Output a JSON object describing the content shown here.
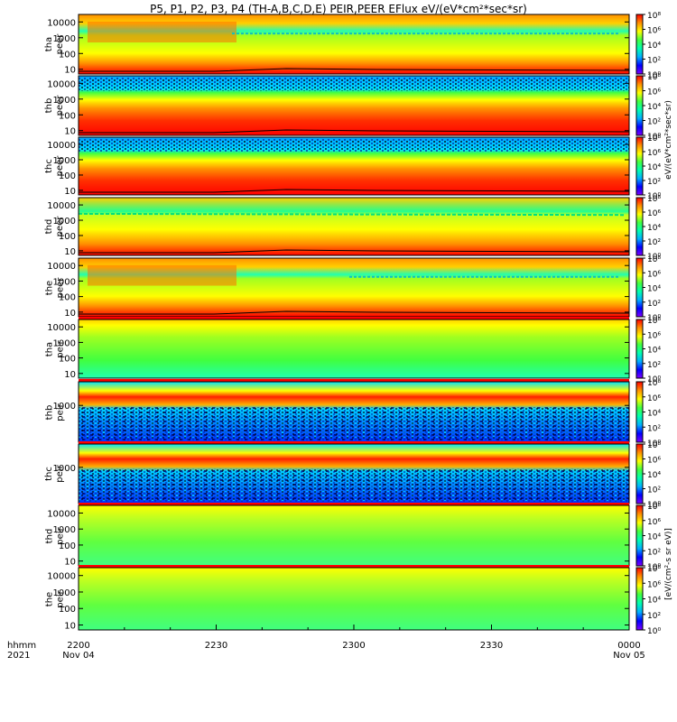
{
  "title": "P5, P1, P2, P3, P4 (TH-A,B,C,D,E) PEIR,PEER EFlux eV/(eV*cm²*sec*sr)",
  "colorbar_label_left": "[eV/(cm²-s sr eV)]",
  "colorbar_label_right": "eV/(eV*cm²*sec*sr)",
  "time_axis": {
    "left_labels": [
      "hhmm",
      "2021"
    ],
    "ticks": [
      {
        "hhmm": "2200",
        "date": "Nov 04"
      },
      {
        "hhmm": "2230",
        "date": ""
      },
      {
        "hhmm": "2300",
        "date": ""
      },
      {
        "hhmm": "2330",
        "date": ""
      },
      {
        "hhmm": "0000",
        "date": "Nov 05"
      }
    ]
  },
  "colors": {
    "colormap": [
      "#7f00ff",
      "#0000ff",
      "#00b0ff",
      "#00ffb0",
      "#40ff40",
      "#ffff00",
      "#ff9000",
      "#ff0000"
    ],
    "line": "#000000"
  },
  "chart_data": {
    "type": "heatmap",
    "title": "P5, P1, P2, P3, P4 (TH-A,B,C,D,E) PEIR,PEER EFlux eV/(eV*cm²*sec*sr)",
    "x": [
      "2200",
      "2230",
      "2300",
      "2330",
      "0000"
    ],
    "x_range": [
      "2021-11-04 22:00",
      "2021-11-05 00:00"
    ],
    "y_scale": "log",
    "z_scale": "log",
    "panels": [
      {
        "name": "tha peer",
        "ylabel": "tha\npeer",
        "yticks": [
          "10",
          "100",
          "1000",
          "10000"
        ],
        "ylim": [
          5,
          30000
        ],
        "zlim": [
          1,
          100000000
        ],
        "cbar_ticks": [
          "10⁰",
          "10²",
          "10⁴",
          "10⁶",
          "10⁸"
        ]
      },
      {
        "name": "thb peer",
        "ylabel": "thb\npeer",
        "yticks": [
          "10",
          "100",
          "1000",
          "10000"
        ],
        "ylim": [
          5,
          30000
        ],
        "zlim": [
          1,
          100000000
        ],
        "cbar_ticks": [
          "10⁰",
          "10²",
          "10⁴",
          "10⁶",
          "10⁸"
        ]
      },
      {
        "name": "thc peer",
        "ylabel": "thc\npeer",
        "yticks": [
          "10",
          "100",
          "1000",
          "10000"
        ],
        "ylim": [
          5,
          30000
        ],
        "zlim": [
          1,
          100000000
        ],
        "cbar_ticks": [
          "10⁰",
          "10²",
          "10⁴",
          "10⁶",
          "10⁸"
        ]
      },
      {
        "name": "thd peer",
        "ylabel": "thd\npeer",
        "yticks": [
          "10",
          "100",
          "1000",
          "10000"
        ],
        "ylim": [
          5,
          30000
        ],
        "zlim": [
          1,
          100000000
        ],
        "cbar_ticks": [
          "10⁰",
          "10²",
          "10⁴",
          "10⁶",
          "10⁸"
        ]
      },
      {
        "name": "the peer",
        "ylabel": "the\npeer",
        "yticks": [
          "10",
          "100",
          "1000",
          "10000"
        ],
        "ylim": [
          5,
          30000
        ],
        "zlim": [
          1,
          100000000
        ],
        "cbar_ticks": [
          "10⁰",
          "10²",
          "10⁴",
          "10⁶",
          "10⁸"
        ]
      },
      {
        "name": "tha peir",
        "ylabel": "tha\npeir",
        "yticks": [
          "10",
          "100",
          "1000",
          "10000"
        ],
        "ylim": [
          5,
          30000
        ],
        "zlim": [
          1,
          100000000
        ],
        "cbar_ticks": [
          "10⁰",
          "10²",
          "10⁴",
          "10⁶",
          "10⁸"
        ]
      },
      {
        "name": "thb peir",
        "ylabel": "thb\npeir",
        "yticks": [
          "1000"
        ],
        "ylim": [
          5,
          30000
        ],
        "zlim": [
          1,
          100000000
        ],
        "cbar_ticks": [
          "10⁰",
          "10²",
          "10⁴",
          "10⁶",
          "10⁸"
        ]
      },
      {
        "name": "thc peir",
        "ylabel": "thc\npeir",
        "yticks": [
          "1000"
        ],
        "ylim": [
          5,
          30000
        ],
        "zlim": [
          1,
          100000000
        ],
        "cbar_ticks": [
          "10⁰",
          "10²",
          "10⁴",
          "10⁶",
          "10⁸"
        ]
      },
      {
        "name": "thd peir",
        "ylabel": "thd\npeir",
        "yticks": [
          "10",
          "100",
          "1000",
          "10000"
        ],
        "ylim": [
          5,
          30000
        ],
        "zlim": [
          1,
          100000000
        ],
        "cbar_ticks": [
          "10⁰",
          "10²",
          "10⁴",
          "10⁶",
          "10⁸"
        ]
      },
      {
        "name": "the peir",
        "ylabel": "the\npeir",
        "yticks": [
          "10",
          "100",
          "1000",
          "10000"
        ],
        "ylim": [
          5,
          30000
        ],
        "zlim": [
          1,
          100000000
        ],
        "cbar_ticks": [
          "10⁰",
          "10²",
          "10⁴",
          "10⁶",
          "10⁸"
        ]
      }
    ]
  }
}
